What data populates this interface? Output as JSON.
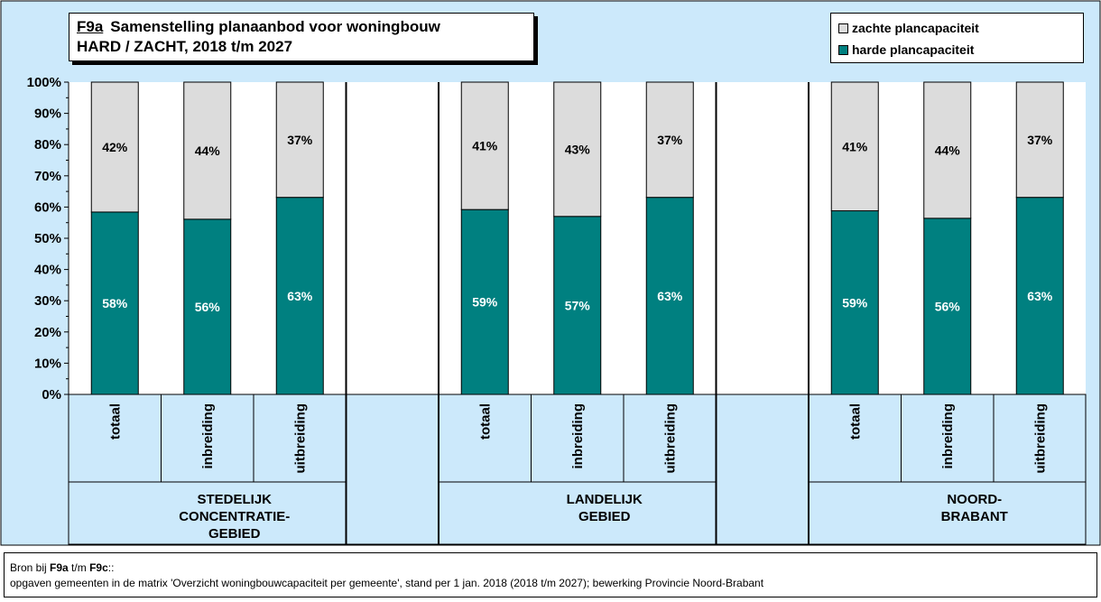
{
  "chart_data": {
    "type": "bar",
    "stacked": true,
    "title_code": "F9a",
    "title_line1": "Samenstelling planaanbod voor woningbouw",
    "title_line2": "HARD / ZACHT,  2018 t/m 2027",
    "yticks": [
      "0%",
      "10%",
      "20%",
      "30%",
      "40%",
      "50%",
      "60%",
      "70%",
      "80%",
      "90%",
      "100%"
    ],
    "ylim": [
      0,
      100
    ],
    "legend_position": "top-right",
    "groups": [
      {
        "label_lines": [
          "STEDELIJK",
          "CONCENTRATIE-",
          "GEBIED"
        ],
        "categories": [
          "totaal",
          "inbreiding",
          "uitbreiding"
        ]
      },
      {
        "label_lines": [
          "LANDELIJK",
          "GEBIED"
        ],
        "categories": [
          "totaal",
          "inbreiding",
          "uitbreiding"
        ]
      },
      {
        "label_lines": [
          "NOORD-",
          "BRABANT"
        ],
        "categories": [
          "totaal",
          "inbreiding",
          "uitbreiding"
        ]
      }
    ],
    "series": [
      {
        "name": "harde plancapaciteit",
        "color": "#008080",
        "label_color": "#ffffff",
        "values": [
          58.4,
          56.1,
          63.1,
          59.2,
          57.0,
          63.1,
          58.8,
          56.4,
          63.1
        ],
        "labels": [
          "58%",
          "56%",
          "63%",
          "59%",
          "57%",
          "63%",
          "59%",
          "56%",
          "63%"
        ]
      },
      {
        "name": "zachte plancapaciteit",
        "color": "#dcdcdc",
        "label_color": "#000000",
        "values": [
          41.6,
          43.9,
          36.9,
          40.8,
          43.0,
          36.9,
          41.2,
          43.6,
          36.9
        ],
        "labels": [
          "42%",
          "44%",
          "37%",
          "41%",
          "43%",
          "37%",
          "41%",
          "44%",
          "37%"
        ]
      }
    ],
    "colors": {
      "background": "#cce9fb",
      "plot_area": "#ffffff"
    }
  },
  "source": {
    "prefix": "Bron bij ",
    "code_from": "F9a",
    "middle": " t/m ",
    "code_to": "F9c",
    "suffix": "::",
    "line2": "opgaven gemeenten in de matrix 'Overzicht woningbouwcapaciteit per gemeente', stand per 1 jan. 2018 (2018 t/m 2027); bewerking Provincie Noord-Brabant"
  }
}
